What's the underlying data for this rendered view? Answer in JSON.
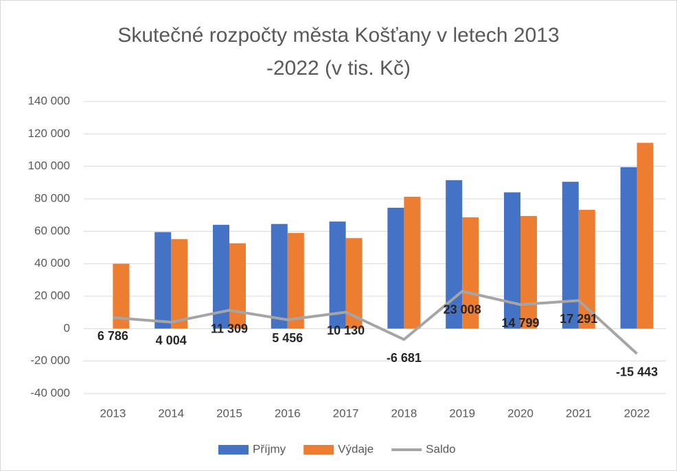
{
  "chart_data": {
    "type": "bar-line",
    "title": "Skutečné rozpočty města Košťany v letech 2013 -2022 (v tis. Kč)",
    "categories": [
      "2013",
      "2014",
      "2015",
      "2016",
      "2017",
      "2018",
      "2019",
      "2020",
      "2021",
      "2022"
    ],
    "series": [
      {
        "name": "Příjmy",
        "type": "bar",
        "color": "#4472c4",
        "values": [
          null,
          59500,
          64000,
          64500,
          66000,
          74500,
          91500,
          84000,
          90500,
          99500
        ]
      },
      {
        "name": "Výdaje",
        "type": "bar",
        "color": "#ed7d31",
        "values": [
          40000,
          55200,
          52600,
          59000,
          55800,
          81300,
          68600,
          69400,
          73200,
          114500
        ]
      },
      {
        "name": "Saldo",
        "type": "line",
        "color": "#a5a5a5",
        "values": [
          6786,
          4004,
          11309,
          5456,
          10130,
          -6681,
          23008,
          14799,
          17291,
          -15443
        ],
        "value_labels": [
          "6 786",
          "4 004",
          "11 309",
          "5 456",
          "10 130",
          "-6 681",
          "23 008",
          "14 799",
          "17 291",
          "-15 443"
        ]
      }
    ],
    "ylim": [
      -40000,
      140000
    ],
    "yticks": [
      {
        "value": -40000,
        "label": "-40 000"
      },
      {
        "value": -20000,
        "label": "-20 000"
      },
      0,
      {
        "value": 20000,
        "label": "20 000"
      },
      {
        "value": 40000,
        "label": "40 000"
      },
      {
        "value": 60000,
        "label": "60 000"
      },
      {
        "value": 80000,
        "label": "80 000"
      },
      {
        "value": 100000,
        "label": "100 000"
      },
      {
        "value": 120000,
        "label": "120 000"
      },
      {
        "value": 140000,
        "label": "140 000"
      }
    ],
    "grid": true,
    "legend": "bottom"
  }
}
